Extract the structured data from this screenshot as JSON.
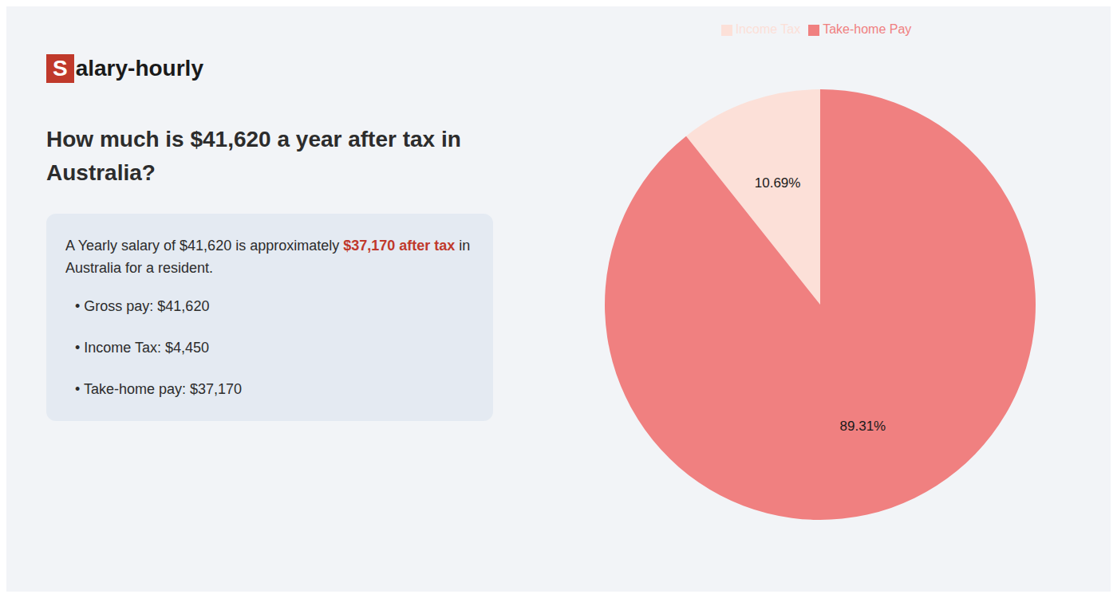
{
  "chart_data": {
    "type": "pie",
    "title": "How much is $41,620 a year after tax in Australia?",
    "categories": [
      "Income Tax",
      "Take-home Pay"
    ],
    "values": [
      10.69,
      89.31
    ],
    "value_labels": [
      "10.69%",
      "89.31%"
    ],
    "colors": [
      "#fce0d8",
      "#f08080"
    ],
    "data_labels": true,
    "legend": "top",
    "annotations": [
      {
        "text": "Salary-hourly",
        "color": "#c0392b"
      },
      {
        "text": "A Yearly salary of $41,620 is approximately "
      },
      {
        "text": "$37,170 after tax",
        "color": "#c0392b"
      },
      {
        "text": " in Australia for a resident."
      },
      {
        "text": "•  Gross pay: $41,620"
      },
      {
        "text": "•  Income Tax: $4,450"
      },
      {
        "text": "•  Take-home pay: $37,170"
      }
    ]
  }
}
